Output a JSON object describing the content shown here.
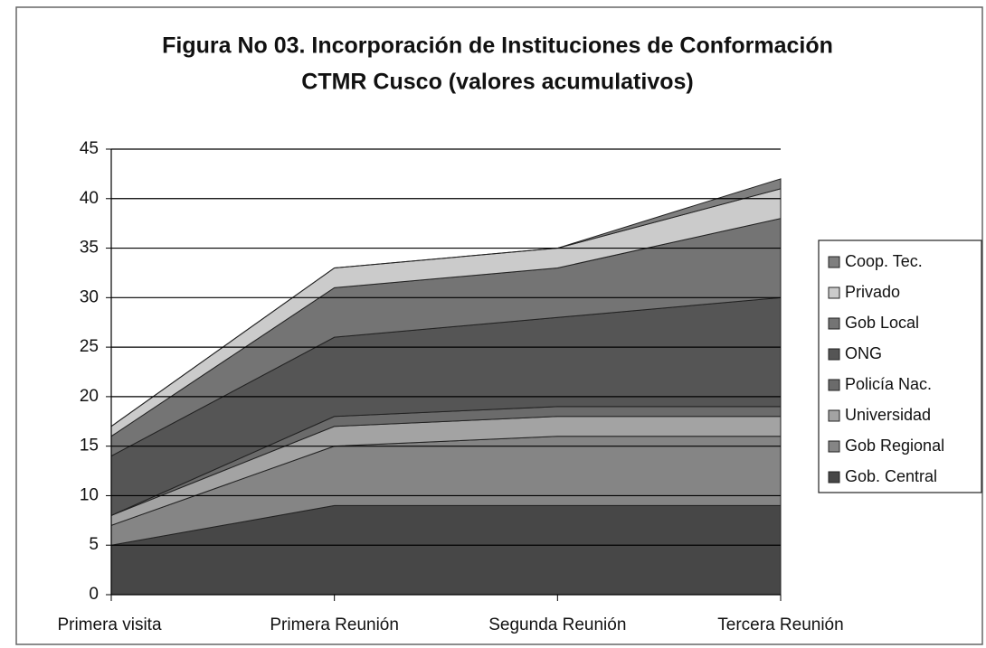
{
  "chart_data": {
    "type": "stacked_area",
    "title": [
      "Figura No 03. Incorporación de Instituciones de Conformación",
      "CTMR Cusco (valores acumulativos)"
    ],
    "categories": [
      "Primera visita",
      "Primera Reunión",
      "Segunda Reunión",
      "Tercera Reunión"
    ],
    "series": [
      {
        "name": "Gob. Central",
        "color": "#474747",
        "values": [
          5,
          9,
          9,
          9
        ]
      },
      {
        "name": "Gob Regional",
        "color": "#858585",
        "values": [
          2,
          6,
          7,
          7
        ]
      },
      {
        "name": "Universidad",
        "color": "#a3a3a3",
        "values": [
          1,
          2,
          2,
          2
        ]
      },
      {
        "name": "Policía Nac.",
        "color": "#6b6b6b",
        "values": [
          0,
          1,
          1,
          1
        ]
      },
      {
        "name": "ONG",
        "color": "#555555",
        "values": [
          6,
          8,
          9,
          11
        ]
      },
      {
        "name": "Gob Local",
        "color": "#747474",
        "values": [
          2,
          5,
          5,
          8
        ]
      },
      {
        "name": "Privado",
        "color": "#cbcbcb",
        "values": [
          1,
          2,
          2,
          3
        ]
      },
      {
        "name": "Coop. Tec.",
        "color": "#7f7f7f",
        "values": [
          0,
          0,
          0,
          1
        ]
      }
    ],
    "ylim": [
      0,
      45
    ],
    "yticks": [
      0,
      5,
      10,
      15,
      20,
      25,
      30,
      35,
      40,
      45
    ],
    "grid": true,
    "legend": "right"
  }
}
